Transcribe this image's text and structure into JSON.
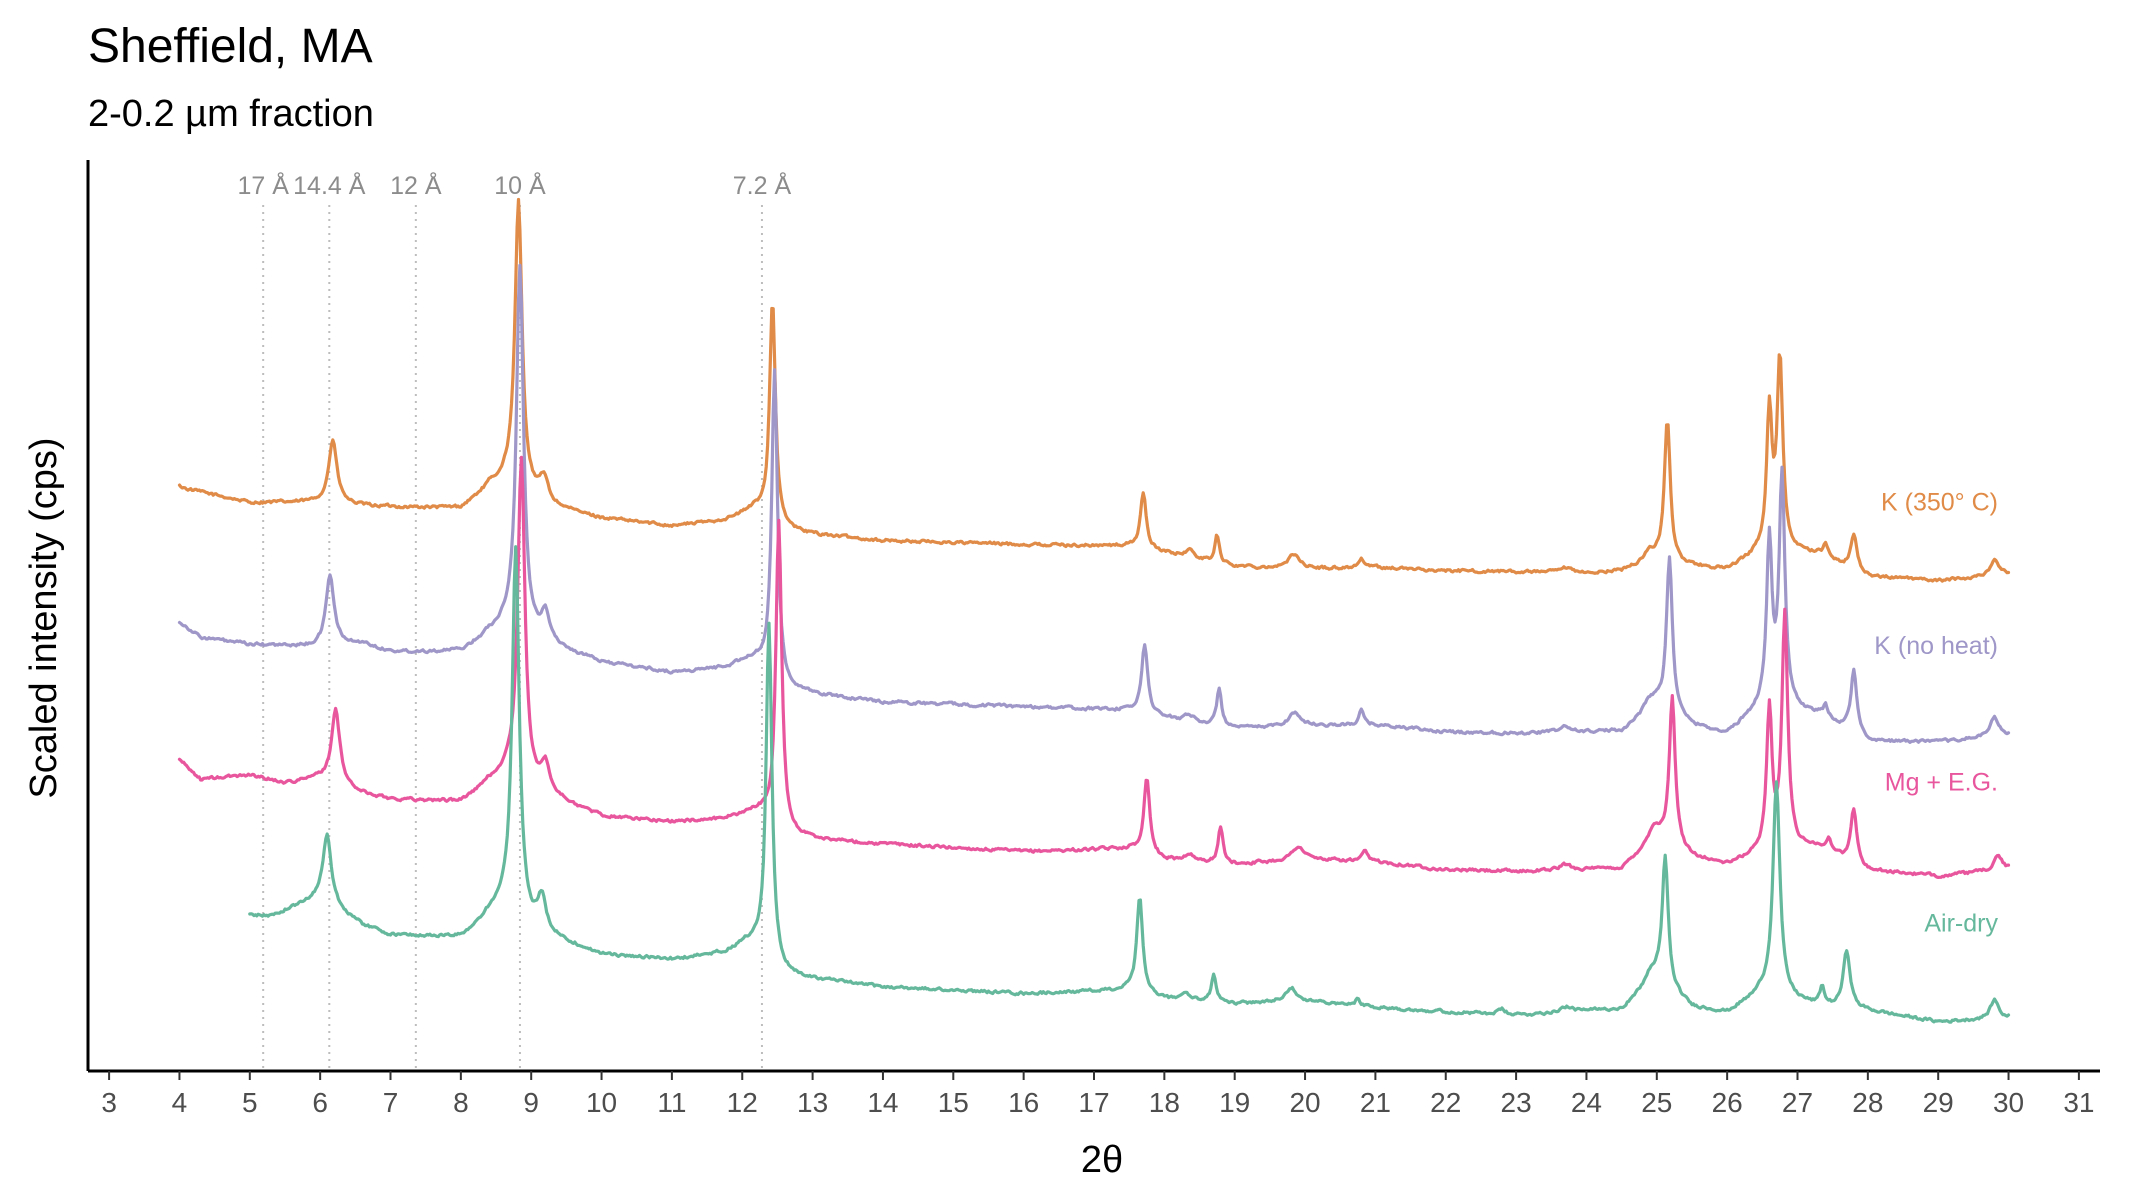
{
  "chart_data": {
    "type": "line",
    "title": "Sheffield, MA",
    "subtitle": "2-0.2 µm fraction",
    "xlabel": "2θ",
    "ylabel": "Scaled intensity (cps)",
    "xlim": [
      2.7,
      31.3
    ],
    "ylim": [
      0,
      100
    ],
    "x_ticks": [
      3,
      4,
      5,
      6,
      7,
      8,
      9,
      10,
      11,
      12,
      13,
      14,
      15,
      16,
      17,
      18,
      19,
      20,
      21,
      22,
      23,
      24,
      25,
      26,
      27,
      28,
      29,
      30,
      31
    ],
    "grid": false,
    "reference_lines": [
      {
        "label": "17 Å",
        "x": 5.19
      },
      {
        "label": "14.4 Å",
        "x": 6.13
      },
      {
        "label": "12 Å",
        "x": 7.36
      },
      {
        "label": "10 Å",
        "x": 8.84
      },
      {
        "label": "7.2 Å",
        "x": 12.28
      }
    ],
    "series": [
      {
        "name": "K (350° C)",
        "color": "#e08b47",
        "x_start": 4.0,
        "x_end": 30.0,
        "baseline": [
          [
            4.0,
            64.2
          ],
          [
            4.1,
            63.9
          ],
          [
            5.0,
            62.4
          ],
          [
            6.0,
            62.4
          ],
          [
            6.6,
            62.0
          ],
          [
            8.0,
            61.6
          ],
          [
            8.4,
            63.4
          ],
          [
            9.3,
            61.7
          ],
          [
            10.0,
            60.6
          ],
          [
            11.0,
            59.8
          ],
          [
            12.0,
            60.4
          ],
          [
            12.6,
            59.1
          ],
          [
            14.0,
            58.2
          ],
          [
            16.0,
            57.8
          ],
          [
            17.5,
            57.6
          ],
          [
            18.0,
            56.9
          ],
          [
            19.0,
            55.4
          ],
          [
            20.0,
            55.1
          ],
          [
            21.0,
            55.3
          ],
          [
            22.0,
            54.9
          ],
          [
            23.0,
            54.8
          ],
          [
            24.0,
            54.6
          ],
          [
            24.5,
            54.9
          ],
          [
            25.0,
            55.9
          ],
          [
            25.5,
            55.4
          ],
          [
            26.0,
            55.0
          ],
          [
            26.5,
            57.0
          ],
          [
            27.3,
            56.7
          ],
          [
            28.0,
            54.3
          ],
          [
            29.0,
            53.8
          ],
          [
            30.0,
            54.5
          ]
        ],
        "peaks": [
          [
            6.18,
            7.0,
            0.07
          ],
          [
            8.82,
            31.2,
            0.06
          ],
          [
            8.7,
            2.0,
            0.25
          ],
          [
            9.18,
            2.6,
            0.07
          ],
          [
            12.43,
            24.5,
            0.05
          ],
          [
            12.2,
            1.5,
            0.2
          ],
          [
            17.7,
            6.1,
            0.05
          ],
          [
            18.35,
            0.8,
            0.07
          ],
          [
            18.75,
            3.0,
            0.04
          ],
          [
            19.85,
            1.6,
            0.1
          ],
          [
            20.8,
            1.1,
            0.04
          ],
          [
            23.7,
            0.5,
            0.1
          ],
          [
            25.15,
            15.4,
            0.05
          ],
          [
            24.9,
            1.2,
            0.1
          ],
          [
            26.6,
            15.0,
            0.045
          ],
          [
            26.75,
            21.0,
            0.05
          ],
          [
            27.4,
            1.3,
            0.04
          ],
          [
            27.8,
            4.0,
            0.05
          ],
          [
            29.8,
            1.9,
            0.07
          ]
        ],
        "noise": 0.28,
        "label_x": 29.85,
        "label_y": 61.5
      },
      {
        "name": "K (no heat)",
        "color": "#9e97c8",
        "x_start": 4.0,
        "x_end": 30.0,
        "baseline": [
          [
            4.0,
            49.3
          ],
          [
            4.3,
            47.6
          ],
          [
            5.0,
            46.8
          ],
          [
            6.0,
            46.5
          ],
          [
            6.6,
            46.9
          ],
          [
            7.0,
            46.0
          ],
          [
            8.0,
            45.9
          ],
          [
            8.4,
            47.3
          ],
          [
            9.3,
            46.4
          ],
          [
            10.0,
            44.8
          ],
          [
            11.0,
            43.7
          ],
          [
            12.0,
            44.2
          ],
          [
            12.6,
            41.6
          ],
          [
            14.0,
            40.5
          ],
          [
            16.0,
            40.0
          ],
          [
            17.5,
            39.6
          ],
          [
            18.0,
            38.8
          ],
          [
            19.0,
            37.6
          ],
          [
            20.0,
            37.9
          ],
          [
            21.0,
            38.0
          ],
          [
            22.0,
            37.2
          ],
          [
            23.0,
            37.1
          ],
          [
            24.0,
            37.2
          ],
          [
            24.5,
            37.3
          ],
          [
            25.0,
            40.0
          ],
          [
            25.5,
            37.9
          ],
          [
            26.0,
            37.0
          ],
          [
            26.5,
            40.0
          ],
          [
            27.3,
            39.1
          ],
          [
            28.0,
            36.2
          ],
          [
            29.0,
            36.1
          ],
          [
            30.0,
            36.9
          ]
        ],
        "peaks": [
          [
            6.14,
            7.9,
            0.07
          ],
          [
            8.84,
            39.8,
            0.06
          ],
          [
            8.7,
            2.0,
            0.25
          ],
          [
            9.2,
            3.2,
            0.07
          ],
          [
            12.46,
            34.1,
            0.05
          ],
          [
            12.2,
            1.5,
            0.2
          ],
          [
            17.72,
            7.6,
            0.05
          ],
          [
            18.35,
            0.8,
            0.07
          ],
          [
            18.78,
            4.2,
            0.04
          ],
          [
            19.85,
            1.5,
            0.1
          ],
          [
            20.8,
            1.6,
            0.04
          ],
          [
            23.7,
            0.6,
            0.1
          ],
          [
            25.18,
            17.0,
            0.05
          ],
          [
            24.9,
            1.2,
            0.1
          ],
          [
            26.6,
            18.0,
            0.045
          ],
          [
            26.78,
            25.5,
            0.05
          ],
          [
            27.4,
            1.2,
            0.04
          ],
          [
            27.8,
            7.0,
            0.05
          ],
          [
            29.8,
            2.1,
            0.07
          ]
        ],
        "noise": 0.28,
        "label_x": 29.85,
        "label_y": 45.8
      },
      {
        "name": "Mg + E.G.",
        "color": "#e8569e",
        "x_start": 4.0,
        "x_end": 30.0,
        "baseline": [
          [
            4.0,
            34.2
          ],
          [
            4.3,
            32.0
          ],
          [
            5.0,
            32.5
          ],
          [
            5.5,
            31.6
          ],
          [
            6.0,
            32.1
          ],
          [
            6.6,
            30.4
          ],
          [
            7.0,
            29.8
          ],
          [
            8.0,
            29.4
          ],
          [
            8.4,
            31.0
          ],
          [
            9.3,
            29.8
          ],
          [
            10.0,
            27.9
          ],
          [
            11.0,
            27.3
          ],
          [
            12.0,
            27.6
          ],
          [
            12.6,
            25.6
          ],
          [
            14.0,
            24.9
          ],
          [
            16.0,
            24.1
          ],
          [
            17.5,
            24.4
          ],
          [
            18.0,
            23.2
          ],
          [
            19.0,
            22.7
          ],
          [
            20.0,
            23.2
          ],
          [
            21.0,
            23.0
          ],
          [
            22.0,
            22.1
          ],
          [
            23.0,
            21.9
          ],
          [
            24.0,
            22.1
          ],
          [
            24.5,
            22.2
          ],
          [
            25.0,
            25.6
          ],
          [
            25.5,
            23.5
          ],
          [
            26.0,
            22.6
          ],
          [
            26.5,
            24.0
          ],
          [
            27.3,
            24.6
          ],
          [
            28.0,
            22.0
          ],
          [
            29.0,
            21.4
          ],
          [
            30.0,
            22.1
          ]
        ],
        "peaks": [
          [
            6.22,
            8.2,
            0.07
          ],
          [
            8.86,
            35.3,
            0.06
          ],
          [
            8.7,
            2.0,
            0.25
          ],
          [
            9.2,
            3.2,
            0.07
          ],
          [
            12.52,
            34.0,
            0.05
          ],
          [
            12.25,
            1.5,
            0.2
          ],
          [
            17.75,
            8.5,
            0.05
          ],
          [
            18.35,
            0.8,
            0.07
          ],
          [
            18.8,
            4.0,
            0.04
          ],
          [
            19.9,
            1.5,
            0.1
          ],
          [
            20.85,
            1.1,
            0.04
          ],
          [
            23.7,
            0.6,
            0.1
          ],
          [
            25.22,
            16.2,
            0.05
          ],
          [
            24.95,
            1.2,
            0.1
          ],
          [
            26.6,
            15.5,
            0.045
          ],
          [
            26.82,
            25.7,
            0.05
          ],
          [
            27.45,
            1.2,
            0.04
          ],
          [
            27.8,
            6.0,
            0.05
          ],
          [
            29.85,
            1.7,
            0.07
          ]
        ],
        "noise": 0.28,
        "label_x": 29.85,
        "label_y": 30.8
      },
      {
        "name": "Air-dry",
        "color": "#66b89d",
        "x_start": 5.0,
        "x_end": 30.0,
        "baseline": [
          [
            5.0,
            17.1
          ],
          [
            5.3,
            17.0
          ],
          [
            5.6,
            17.9
          ],
          [
            6.0,
            19.0
          ],
          [
            6.6,
            16.0
          ],
          [
            7.0,
            14.9
          ],
          [
            8.0,
            14.5
          ],
          [
            8.4,
            16.3
          ],
          [
            9.3,
            14.5
          ],
          [
            10.0,
            12.7
          ],
          [
            11.0,
            12.2
          ],
          [
            12.0,
            12.9
          ],
          [
            12.6,
            10.4
          ],
          [
            14.0,
            9.2
          ],
          [
            16.0,
            8.5
          ],
          [
            17.5,
            8.9
          ],
          [
            18.0,
            7.9
          ],
          [
            19.0,
            7.4
          ],
          [
            20.0,
            7.6
          ],
          [
            21.0,
            7.0
          ],
          [
            22.0,
            6.5
          ],
          [
            23.0,
            6.1
          ],
          [
            24.0,
            6.6
          ],
          [
            24.5,
            6.8
          ],
          [
            25.0,
            10.0
          ],
          [
            25.5,
            7.0
          ],
          [
            26.0,
            6.4
          ],
          [
            26.5,
            8.5
          ],
          [
            27.3,
            7.1
          ],
          [
            28.0,
            6.6
          ],
          [
            29.0,
            5.4
          ],
          [
            30.0,
            5.8
          ]
        ],
        "peaks": [
          [
            6.1,
            7.4,
            0.07
          ],
          [
            8.78,
            40.2,
            0.06
          ],
          [
            8.65,
            2.0,
            0.25
          ],
          [
            9.15,
            3.5,
            0.07
          ],
          [
            12.38,
            37.2,
            0.05
          ],
          [
            12.15,
            1.5,
            0.2
          ],
          [
            17.65,
            10.4,
            0.05
          ],
          [
            18.3,
            0.8,
            0.07
          ],
          [
            18.7,
            3.0,
            0.04
          ],
          [
            19.8,
            1.6,
            0.1
          ],
          [
            20.75,
            0.9,
            0.04
          ],
          [
            22.8,
            0.6,
            0.06
          ],
          [
            23.7,
            0.6,
            0.1
          ],
          [
            25.12,
            14.1,
            0.05
          ],
          [
            24.9,
            1.2,
            0.1
          ],
          [
            26.7,
            23.5,
            0.06
          ],
          [
            27.35,
            2.0,
            0.04
          ],
          [
            27.7,
            6.3,
            0.06
          ],
          [
            29.8,
            2.1,
            0.07
          ]
        ],
        "noise": 0.28,
        "label_x": 29.85,
        "label_y": 15.3
      }
    ]
  }
}
